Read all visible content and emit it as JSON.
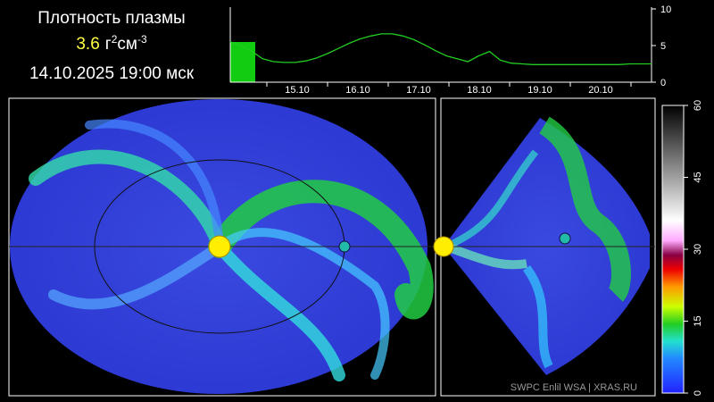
{
  "header": {
    "title": "Плотность плазмы",
    "value": "3.6",
    "unit": [
      "г",
      "2",
      "см",
      "-3"
    ],
    "datetime": "14.10.2025 19:00 мск"
  },
  "timeline": {
    "ylim": [
      0,
      10
    ],
    "yticks": [
      0,
      5,
      10
    ],
    "dates": [
      "15.10",
      "16.10",
      "17.10",
      "18.10",
      "19.10",
      "20.10"
    ],
    "values": [
      5.5,
      5.0,
      4.2,
      3.2,
      2.8,
      2.7,
      2.7,
      2.9,
      3.3,
      3.9,
      4.6,
      5.3,
      5.9,
      6.3,
      6.6,
      6.6,
      6.3,
      5.8,
      5.1,
      4.3,
      3.6,
      3.2,
      2.8,
      3.6,
      4.2,
      3.0,
      2.6,
      2.5,
      2.4,
      2.4,
      2.4,
      2.4,
      2.4,
      2.4,
      2.4,
      2.4,
      2.4,
      2.5,
      2.5,
      2.5
    ]
  },
  "colorbar": {
    "lim": [
      0,
      60
    ],
    "ticks": [
      0,
      15,
      30,
      45,
      60
    ]
  },
  "credit": "SWPC Enlil WSA  |  XRAS.RU"
}
